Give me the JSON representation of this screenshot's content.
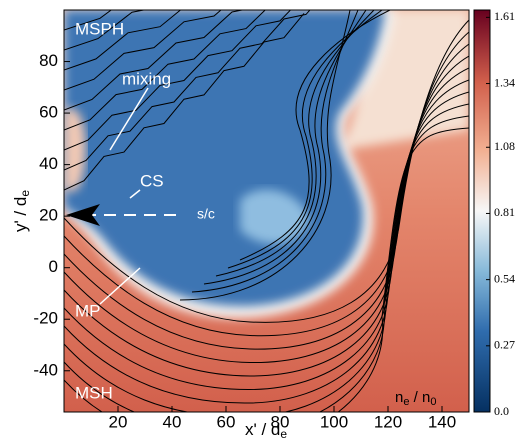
{
  "chart_data": {
    "type": "heatmap",
    "x_label": [
      "x' / d",
      "e"
    ],
    "y_label": [
      "y' / d",
      "e"
    ],
    "xlim": [
      0,
      150
    ],
    "xticks": [
      20,
      40,
      60,
      80,
      100,
      120,
      140
    ],
    "ylim": [
      -56,
      100
    ],
    "yticks": [
      -40,
      -20,
      0,
      20,
      40,
      60,
      80
    ],
    "colorbar": {
      "label": [
        "n",
        "e",
        " / n",
        "0"
      ],
      "lim": [
        0,
        1.64
      ],
      "ticks": [
        {
          "value": 0,
          "label": "0.0"
        },
        0.27,
        0.54,
        0.81,
        1.08,
        1.34,
        1.61
      ],
      "colormap": "RdBu_r"
    },
    "annotations": [
      "MSPH",
      "mixing",
      "CS",
      "s/c",
      "MP",
      "MSH"
    ]
  }
}
